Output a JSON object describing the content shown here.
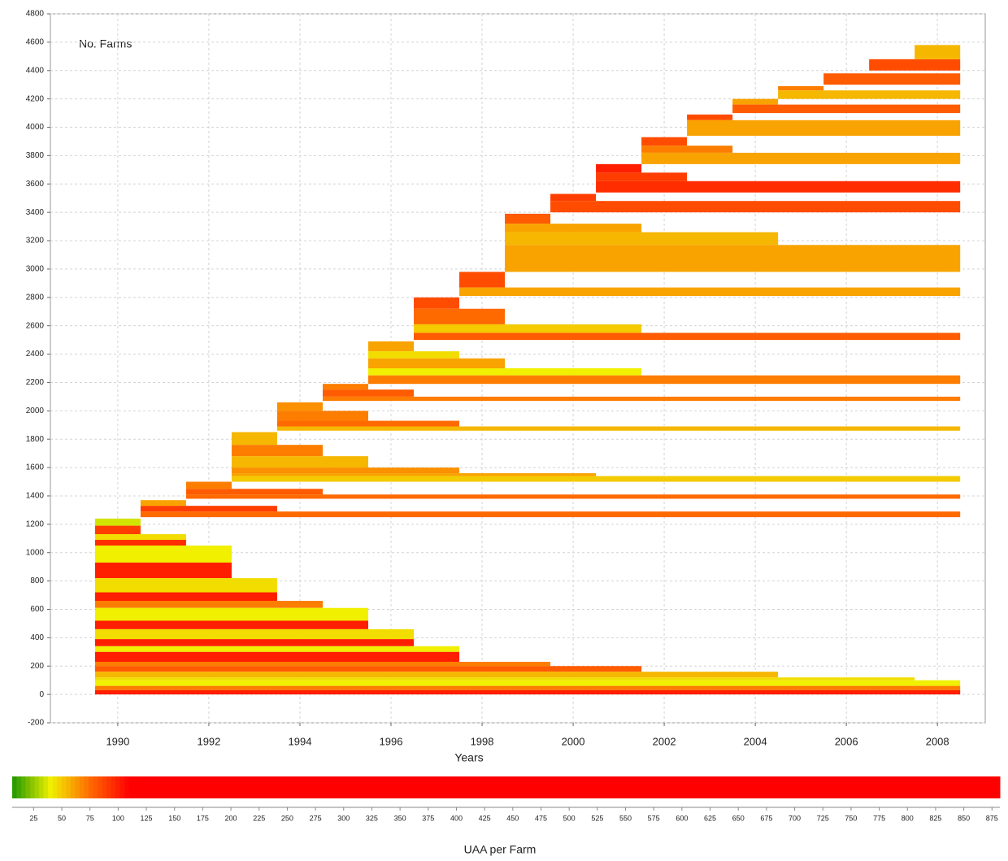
{
  "chart_data": {
    "type": "cohort-bands",
    "annotation": "No. Farms",
    "xlabel": "Years",
    "xlim": [
      1988.52,
      2009.05
    ],
    "xticks": [
      1990,
      1992,
      1994,
      1996,
      1998,
      2000,
      2002,
      2004,
      2006,
      2008
    ],
    "ylim": [
      -200,
      4800
    ],
    "yticks": [
      -200,
      0,
      200,
      400,
      600,
      800,
      1000,
      1200,
      1400,
      1600,
      1800,
      2000,
      2200,
      2400,
      2600,
      2800,
      3000,
      3200,
      3400,
      3600,
      3800,
      4000,
      4200,
      4400,
      4600,
      4800
    ],
    "grid": true,
    "colormap": [
      "#1e9600",
      "#f0f000",
      "#ff6a00",
      "#ff0000"
    ],
    "colormap_stops": [
      6,
      40,
      75,
      110
    ],
    "bands": {
      "y0": [
        1190,
        1130,
        1090,
        1050,
        930,
        820,
        720,
        660,
        610,
        520,
        460,
        390,
        340,
        300,
        230,
        200,
        160,
        120,
        100,
        60,
        30,
        0,
        1330,
        1290,
        1250,
        1450,
        1410,
        1380,
        1760,
        1680,
        1600,
        1560,
        1540,
        1500,
        2000,
        1930,
        1890,
        1860,
        2150,
        2100,
        2070,
        2420,
        2370,
        2300,
        2250,
        2190,
        2720,
        2610,
        2550,
        2500,
        2870,
        2810,
        3320,
        3260,
        3170,
        2980,
        3480,
        3400,
        3680,
        3620,
        3540,
        3870,
        3820,
        3740,
        4050,
        3940,
        4160,
        4100,
        4260,
        4200,
        4300,
        4400,
        4480
      ],
      "y1": [
        1240,
        1190,
        1130,
        1090,
        1050,
        930,
        820,
        720,
        660,
        610,
        520,
        460,
        390,
        340,
        300,
        230,
        200,
        160,
        120,
        100,
        60,
        30,
        1370,
        1330,
        1290,
        1500,
        1450,
        1410,
        1850,
        1760,
        1680,
        1600,
        1560,
        1540,
        2060,
        2000,
        1930,
        1890,
        2190,
        2150,
        2100,
        2490,
        2420,
        2370,
        2300,
        2250,
        2800,
        2720,
        2610,
        2550,
        2980,
        2870,
        3390,
        3320,
        3260,
        3170,
        3530,
        3480,
        3740,
        3680,
        3620,
        3930,
        3870,
        3820,
        4090,
        4050,
        4200,
        4160,
        4290,
        4260,
        4380,
        4480,
        4580
      ],
      "x0": [
        1989.5,
        1989.5,
        1989.5,
        1989.5,
        1989.5,
        1989.5,
        1989.5,
        1989.5,
        1989.5,
        1989.5,
        1989.5,
        1989.5,
        1989.5,
        1989.5,
        1989.5,
        1989.5,
        1989.5,
        1989.5,
        1989.5,
        1989.5,
        1989.5,
        1989.5,
        1990.5,
        1990.5,
        1990.5,
        1991.5,
        1991.5,
        1991.5,
        1992.5,
        1992.5,
        1992.5,
        1992.5,
        1992.5,
        1992.5,
        1993.5,
        1993.5,
        1993.5,
        1993.5,
        1994.5,
        1994.5,
        1994.5,
        1995.5,
        1995.5,
        1995.5,
        1995.5,
        1995.5,
        1996.5,
        1996.5,
        1996.5,
        1996.5,
        1997.5,
        1997.5,
        1998.5,
        1998.5,
        1998.5,
        1998.5,
        1999.5,
        1999.5,
        2000.5,
        2000.5,
        2000.5,
        2001.5,
        2001.5,
        2001.5,
        2002.5,
        2002.5,
        2003.5,
        2003.5,
        2004.5,
        2004.5,
        2005.5,
        2006.5,
        2007.5
      ],
      "x1": [
        1990.5,
        1990.5,
        1991.5,
        1991.5,
        1992.5,
        1992.5,
        1993.5,
        1993.5,
        1994.5,
        1995.5,
        1995.5,
        1996.5,
        1996.5,
        1997.5,
        1997.5,
        1999.5,
        2001.5,
        2004.5,
        2007.5,
        2008.5,
        2008.5,
        2008.5,
        1991.5,
        1993.5,
        2008.5,
        1992.5,
        1994.5,
        2008.5,
        1993.5,
        1994.5,
        1995.5,
        1997.5,
        2000.5,
        2008.5,
        1994.5,
        1995.5,
        1997.5,
        2008.5,
        1995.5,
        1996.5,
        2008.5,
        1996.5,
        1997.5,
        1998.5,
        2001.5,
        2008.5,
        1997.5,
        1998.5,
        2001.5,
        2008.5,
        1998.5,
        2008.5,
        1999.5,
        2001.5,
        2004.5,
        2008.5,
        2000.5,
        2008.5,
        2001.5,
        2002.5,
        2008.5,
        2002.5,
        2003.5,
        2008.5,
        2003.5,
        2008.5,
        2004.5,
        2008.5,
        2005.5,
        2008.5,
        2008.5,
        2008.5,
        2008.5
      ],
      "uaa": [
        35,
        90,
        45,
        95,
        40,
        100,
        45,
        100,
        70,
        40,
        100,
        45,
        100,
        40,
        100,
        70,
        80,
        55,
        45,
        40,
        70,
        100,
        60,
        90,
        75,
        70,
        80,
        75,
        55,
        70,
        55,
        65,
        60,
        50,
        65,
        70,
        75,
        55,
        70,
        80,
        70,
        60,
        45,
        60,
        40,
        70,
        85,
        75,
        50,
        80,
        85,
        60,
        80,
        60,
        55,
        60,
        90,
        85,
        100,
        90,
        95,
        85,
        70,
        60,
        85,
        60,
        60,
        80,
        70,
        55,
        80,
        85,
        55
      ]
    },
    "colorbar": {
      "label": "UAA per Farm",
      "clim": [
        6,
        882
      ],
      "ticks": [
        25,
        50,
        75,
        100,
        125,
        150,
        175,
        200,
        225,
        250,
        275,
        300,
        325,
        350,
        375,
        400,
        425,
        450,
        475,
        500,
        525,
        550,
        575,
        600,
        625,
        650,
        675,
        700,
        725,
        750,
        775,
        800,
        825,
        850,
        875
      ]
    }
  }
}
